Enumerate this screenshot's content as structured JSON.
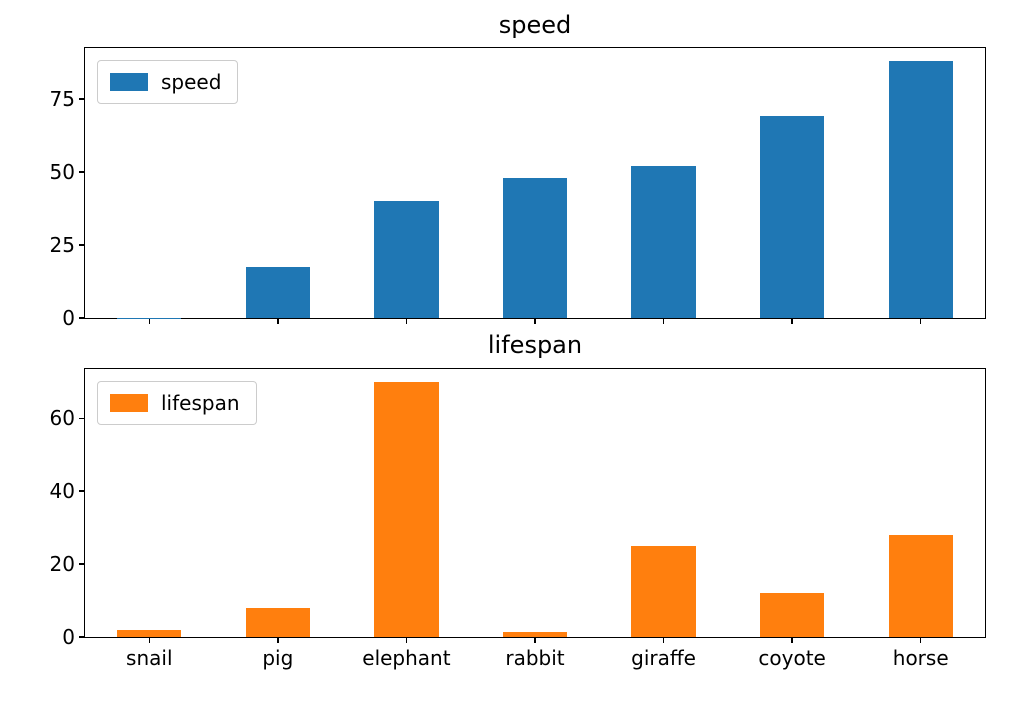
{
  "chart_data": [
    {
      "type": "bar",
      "title": "speed",
      "legend_label": "speed",
      "legend_position": "upper left",
      "color": "#1f77b4",
      "categories": [
        "snail",
        "pig",
        "elephant",
        "rabbit",
        "giraffe",
        "coyote",
        "horse"
      ],
      "values": [
        0.1,
        17.5,
        40,
        48,
        52,
        69,
        88
      ],
      "yticks": [
        0,
        25,
        50,
        75
      ],
      "ylim": [
        0,
        92.4
      ],
      "grid": false,
      "show_xlabels": false
    },
    {
      "type": "bar",
      "title": "lifespan",
      "legend_label": "lifespan",
      "legend_position": "upper left",
      "color": "#ff7f0e",
      "categories": [
        "snail",
        "pig",
        "elephant",
        "rabbit",
        "giraffe",
        "coyote",
        "horse"
      ],
      "values": [
        2,
        8,
        70,
        1.5,
        25,
        12,
        28
      ],
      "yticks": [
        0,
        20,
        40,
        60
      ],
      "ylim": [
        0,
        73.5
      ],
      "grid": false,
      "show_xlabels": true
    }
  ]
}
